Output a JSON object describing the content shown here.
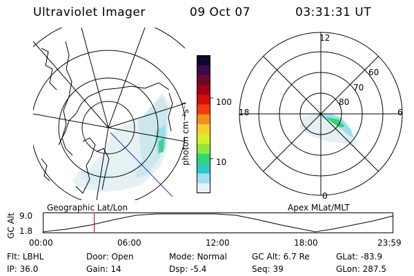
{
  "header": {
    "title": "Ultraviolet Imager",
    "date": "09 Oct 07",
    "time": "03:31:31 UT"
  },
  "colorbar": {
    "unit_label": "photon cm⁻²s⁻¹",
    "ticks": [
      "100",
      "10"
    ],
    "colors": [
      "#0b0830",
      "#3a0a4a",
      "#6a0a2a",
      "#a00018",
      "#d40c0c",
      "#ee3c10",
      "#f2901c",
      "#f7d02c",
      "#d8ef2a",
      "#8ee83a",
      "#2ed874",
      "#2ec8c8",
      "#9ee0f0",
      "#e8f2f6"
    ]
  },
  "left_map": {
    "caption": "Geographic Lat/Lon"
  },
  "right_map": {
    "caption": "Apex MLat/MLT",
    "mlt_labels": {
      "top": "12",
      "bottom": "0",
      "left": "18",
      "right": "6"
    },
    "lat_labels": [
      "60",
      "70",
      "80"
    ]
  },
  "timeline": {
    "axis_title": "GC Alt",
    "y_ticks": [
      "9.0",
      "1.8"
    ],
    "x_ticks": [
      "00:00",
      "06:00",
      "12:00",
      "18:00",
      "23:59"
    ],
    "marker_fraction": 0.1467
  },
  "info": {
    "rows": [
      [
        {
          "label": "Flt:",
          "value": "LBHL"
        },
        {
          "label": "Door:",
          "value": "Open"
        },
        {
          "label": "Mode:",
          "value": "Normal"
        },
        {
          "label": "GC Alt:",
          "value": "6.7 Re"
        },
        {
          "label": "GLat:",
          "value": "-83.9"
        }
      ],
      [
        {
          "label": "IP:",
          "value": "36.0"
        },
        {
          "label": "Gain:",
          "value": "14"
        },
        {
          "label": "Dsp:",
          "value": "-5.4"
        },
        {
          "label": "Seq:",
          "value": "39"
        },
        {
          "label": "GLon:",
          "value": "287.5"
        }
      ]
    ]
  }
}
